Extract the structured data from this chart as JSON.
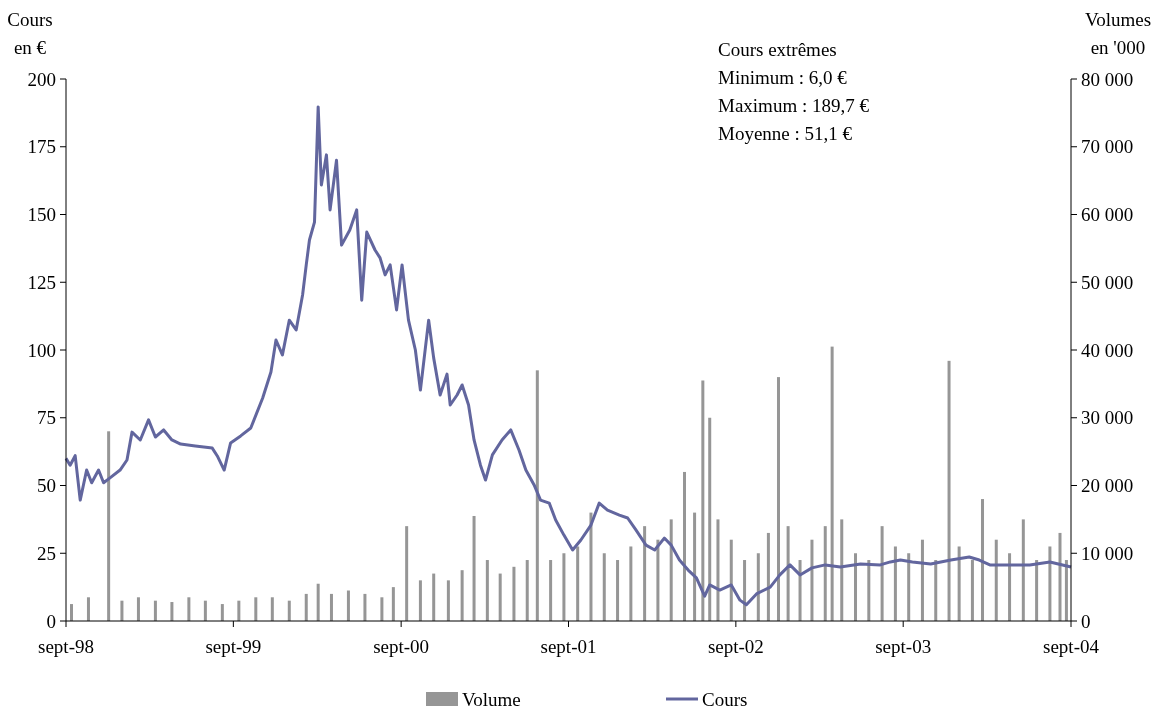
{
  "chart_data": {
    "type": "line",
    "ylabel": "Cours en €",
    "y2label": "Volumes en '000",
    "annotations": [
      "Cours extrêmes",
      "Minimum : 6,0 €",
      "Maximum : 189,7 €",
      "Moyenne : 51,1 €"
    ],
    "xlim": [
      "1998-09-01",
      "2004-09-01"
    ],
    "xticks": [
      {
        "value": "1998-09-01",
        "label": "sept-98"
      },
      {
        "value": "1999-09-01",
        "label": "sept-99"
      },
      {
        "value": "2000-09-01",
        "label": "sept-00"
      },
      {
        "value": "2001-09-01",
        "label": "sept-01"
      },
      {
        "value": "2002-09-01",
        "label": "sept-02"
      },
      {
        "value": "2003-09-01",
        "label": "sept-03"
      },
      {
        "value": "2004-09-01",
        "label": "sept-04"
      }
    ],
    "ylim": [
      0,
      200
    ],
    "yticks": [
      0,
      25,
      50,
      75,
      100,
      125,
      150,
      175,
      200
    ],
    "y2lim": [
      0,
      80000
    ],
    "y2ticks": [
      {
        "value": 0,
        "label": "0"
      },
      {
        "value": 10000,
        "label": "10 000"
      },
      {
        "value": 20000,
        "label": "20 000"
      },
      {
        "value": 30000,
        "label": "30 000"
      },
      {
        "value": 40000,
        "label": "40 000"
      },
      {
        "value": 50000,
        "label": "50 000"
      },
      {
        "value": 60000,
        "label": "60 000"
      },
      {
        "value": 70000,
        "label": "70 000"
      },
      {
        "value": 80000,
        "label": "80 000"
      }
    ],
    "legend": "bottom",
    "series": [
      {
        "name": "Volume",
        "type": "bar",
        "axis": "y2",
        "color": "#969696",
        "x": [
          "1998-09-13",
          "1998-10-20",
          "1998-12-03",
          "1999-01-01",
          "1999-02-06",
          "1999-03-15",
          "1999-04-20",
          "1999-05-27",
          "1999-07-02",
          "1999-08-08",
          "1999-09-13",
          "1999-10-20",
          "1999-11-25",
          "2000-01-01",
          "2000-02-07",
          "2000-03-04",
          "2000-04-02",
          "2000-05-09",
          "2000-06-14",
          "2000-07-21",
          "2000-08-15",
          "2000-09-13",
          "2000-10-13",
          "2000-11-11",
          "2000-12-13",
          "2001-01-12",
          "2001-02-07",
          "2001-03-08",
          "2001-04-05",
          "2001-05-05",
          "2001-06-03",
          "2001-06-25",
          "2001-07-24",
          "2001-08-22",
          "2001-09-21",
          "2001-10-20",
          "2001-11-18",
          "2001-12-17",
          "2002-01-15",
          "2002-02-14",
          "2002-03-15",
          "2002-04-13",
          "2002-05-12",
          "2002-06-03",
          "2002-06-21",
          "2002-07-06",
          "2002-07-24",
          "2002-08-22",
          "2002-09-20",
          "2002-10-20",
          "2002-11-11",
          "2002-12-03",
          "2002-12-24",
          "2003-01-19",
          "2003-02-14",
          "2003-03-15",
          "2003-03-30",
          "2003-04-20",
          "2003-05-20",
          "2003-06-18",
          "2003-07-17",
          "2003-08-15",
          "2003-09-13",
          "2003-10-13",
          "2003-11-11",
          "2003-12-10",
          "2004-01-01",
          "2004-01-30",
          "2004-02-21",
          "2004-03-22",
          "2004-04-20",
          "2004-05-20",
          "2004-06-18",
          "2004-07-17",
          "2004-08-08",
          "2004-08-22"
        ],
        "values": [
          2500,
          3500,
          28000,
          3000,
          3500,
          3000,
          2800,
          3500,
          3000,
          2500,
          3000,
          3500,
          3500,
          3000,
          4000,
          5500,
          4000,
          4500,
          4000,
          3500,
          5000,
          14000,
          6000,
          7000,
          6000,
          7500,
          15500,
          9000,
          7000,
          8000,
          9000,
          37000,
          9000,
          10000,
          11000,
          16000,
          10000,
          9000,
          11000,
          14000,
          12000,
          15000,
          22000,
          16000,
          35500,
          30000,
          15000,
          12000,
          9000,
          10000,
          13000,
          36000,
          14000,
          9000,
          12000,
          14000,
          40500,
          15000,
          10000,
          9000,
          14000,
          11000,
          10000,
          12000,
          9000,
          38400,
          11000,
          9000,
          18000,
          12000,
          10000,
          15000,
          9000,
          11000,
          13000,
          9000
        ]
      },
      {
        "name": "Cours",
        "color": "#62669e",
        "x": [
          "1998-09-01",
          "1998-09-10",
          "1998-09-21",
          "1998-10-02",
          "1998-10-16",
          "1998-10-27",
          "1998-11-11",
          "1998-11-22",
          "1998-12-06",
          "1998-12-28",
          "1999-01-12",
          "1999-01-23",
          "1999-02-10",
          "1999-02-28",
          "1999-03-15",
          "1999-04-02",
          "1999-04-20",
          "1999-05-09",
          "1999-06-10",
          "1999-07-17",
          "1999-07-28",
          "1999-08-12",
          "1999-08-26",
          "1999-09-17",
          "1999-10-09",
          "1999-11-04",
          "1999-11-22",
          "1999-12-03",
          "1999-12-17",
          "2000-01-01",
          "2000-01-16",
          "2000-01-30",
          "2000-02-07",
          "2000-02-14",
          "2000-02-25",
          "2000-03-04",
          "2000-03-11",
          "2000-03-22",
          "2000-03-30",
          "2000-04-13",
          "2000-04-24",
          "2000-05-12",
          "2000-05-27",
          "2000-06-07",
          "2000-06-18",
          "2000-07-06",
          "2000-07-17",
          "2000-07-28",
          "2000-08-08",
          "2000-08-22",
          "2000-09-03",
          "2000-09-17",
          "2000-10-02",
          "2000-10-13",
          "2000-10-31",
          "2000-11-11",
          "2000-11-25",
          "2000-12-10",
          "2000-12-17",
          "2001-01-01",
          "2001-01-12",
          "2001-01-26",
          "2001-02-07",
          "2001-02-21",
          "2001-03-04",
          "2001-03-19",
          "2001-04-09",
          "2001-04-28",
          "2001-05-16",
          "2001-05-31",
          "2001-06-18",
          "2001-07-02",
          "2001-07-21",
          "2001-08-04",
          "2001-08-22",
          "2001-09-10",
          "2001-09-28",
          "2001-10-20",
          "2001-11-07",
          "2001-11-25",
          "2001-12-21",
          "2002-01-08",
          "2002-01-26",
          "2002-02-17",
          "2002-03-08",
          "2002-03-29",
          "2002-04-13",
          "2002-05-01",
          "2002-05-20",
          "2002-06-07",
          "2002-06-25",
          "2002-07-06",
          "2002-07-28",
          "2002-08-22",
          "2002-09-10",
          "2002-09-24",
          "2002-10-16",
          "2002-11-15",
          "2002-12-06",
          "2002-12-28",
          "2003-01-19",
          "2003-02-14",
          "2003-03-15",
          "2003-04-17",
          "2003-05-31",
          "2003-07-13",
          "2003-08-04",
          "2003-08-26",
          "2003-09-21",
          "2003-10-31",
          "2003-12-14",
          "2004-01-23",
          "2004-02-14",
          "2004-03-08",
          "2004-04-20",
          "2004-06-03",
          "2004-07-17",
          "2004-09-01"
        ],
        "values": [
          60,
          57.5,
          61,
          44.6,
          55.7,
          51,
          55.7,
          51,
          52.8,
          55.7,
          59.4,
          69.7,
          66.8,
          74.2,
          67.9,
          70.5,
          66.8,
          65.3,
          64.6,
          63.8,
          60.9,
          55.7,
          65.7,
          68.3,
          71.2,
          82.3,
          91.9,
          103.7,
          98.2,
          111,
          107.4,
          120.3,
          131.4,
          140.6,
          147.2,
          189.7,
          160.9,
          172,
          151.7,
          170,
          138.7,
          144.3,
          151.7,
          118.4,
          143.5,
          136.9,
          134,
          127.7,
          131.4,
          114.8,
          131.4,
          111,
          100,
          85.2,
          111,
          97,
          83.4,
          91.1,
          79.7,
          83.4,
          87.1,
          79.7,
          66.8,
          57.5,
          52,
          61.3,
          66.8,
          70.5,
          63.1,
          55.7,
          50.2,
          44.6,
          43.5,
          37.3,
          31.7,
          26.2,
          29.9,
          35.4,
          43.5,
          40.9,
          39.1,
          38,
          33.6,
          28,
          26.2,
          30.6,
          28,
          22.5,
          18.8,
          15.9,
          9.2,
          13.3,
          11.4,
          13.3,
          7.7,
          6,
          10,
          12.5,
          17,
          20.7,
          17,
          19.6,
          20.7,
          19.9,
          21,
          20.7,
          21.8,
          22.5,
          21.8,
          21,
          22.5,
          23.6,
          22.5,
          20.7,
          20.7,
          20.7,
          21.8,
          19.9
        ]
      }
    ]
  }
}
